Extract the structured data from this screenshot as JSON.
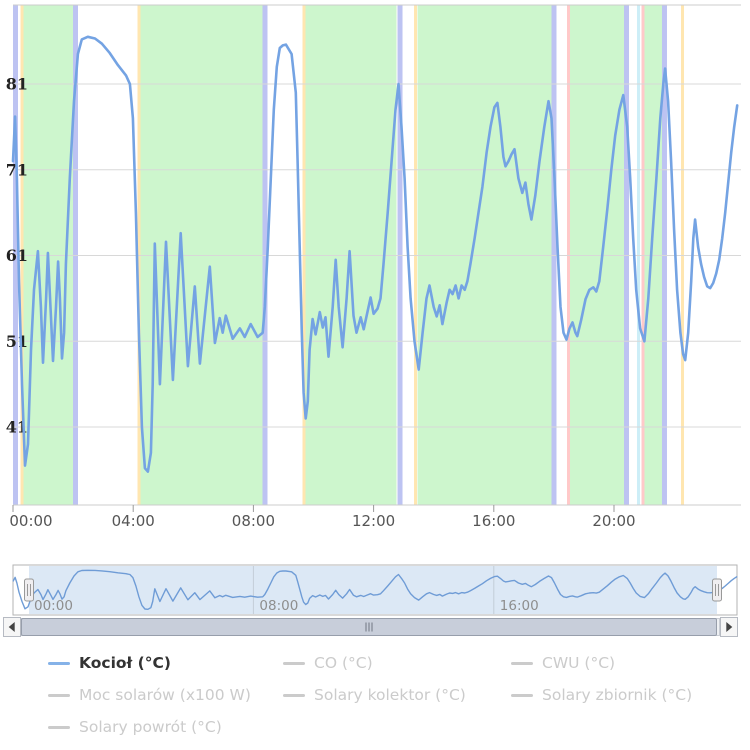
{
  "palette": {
    "series_blue": "#74a3e3",
    "band_green": "#cdf6cd",
    "plotline_lavender": "#bdc3f2",
    "plotline_yellow": "#ffe6b0",
    "plotline_pink": "#ffc9c9",
    "plotline_cyan": "#cdeef7",
    "gridline": "#d8d8d8",
    "axis_line": "#cccccc",
    "inactive_gray": "#cbcbcb"
  },
  "chart_data": {
    "type": "line",
    "title": "",
    "x_axis": {
      "unit": "time of day",
      "ticks": [
        {
          "h": 0,
          "label": "00:00"
        },
        {
          "h": 4,
          "label": "04:00"
        },
        {
          "h": 8,
          "label": "08:00"
        },
        {
          "h": 12,
          "label": "12:00"
        },
        {
          "h": 16,
          "label": "16:00"
        },
        {
          "h": 20,
          "label": "20:00"
        }
      ],
      "range_hours": [
        0,
        24.2
      ]
    },
    "y_axis": {
      "ticks": [
        81,
        71,
        61,
        51,
        41
      ],
      "range": [
        31.9,
        90.3
      ],
      "grid": true
    },
    "series": [
      {
        "name": "Kocioł (°C)",
        "color": "#74a3e3",
        "visible": true,
        "points": [
          [
            0.0,
            72
          ],
          [
            0.07,
            77.2
          ],
          [
            0.13,
            70
          ],
          [
            0.2,
            58
          ],
          [
            0.3,
            46
          ],
          [
            0.4,
            36.5
          ],
          [
            0.5,
            39
          ],
          [
            0.6,
            50
          ],
          [
            0.7,
            57
          ],
          [
            0.83,
            61.5
          ],
          [
            0.93,
            55
          ],
          [
            1.0,
            48.5
          ],
          [
            1.1,
            56
          ],
          [
            1.16,
            61.3
          ],
          [
            1.26,
            54
          ],
          [
            1.33,
            48.7
          ],
          [
            1.43,
            55
          ],
          [
            1.5,
            60.3
          ],
          [
            1.56,
            56
          ],
          [
            1.63,
            49
          ],
          [
            1.7,
            52
          ],
          [
            1.76,
            60
          ],
          [
            1.89,
            70
          ],
          [
            2.03,
            79
          ],
          [
            2.16,
            84.5
          ],
          [
            2.29,
            86.2
          ],
          [
            2.49,
            86.5
          ],
          [
            2.73,
            86.3
          ],
          [
            2.96,
            85.7
          ],
          [
            3.22,
            84.6
          ],
          [
            3.49,
            83.2
          ],
          [
            3.76,
            82.0
          ],
          [
            3.89,
            81.0
          ],
          [
            3.99,
            77
          ],
          [
            4.09,
            66
          ],
          [
            4.19,
            52
          ],
          [
            4.29,
            41
          ],
          [
            4.39,
            36.2
          ],
          [
            4.49,
            35.8
          ],
          [
            4.59,
            38
          ],
          [
            4.65,
            46
          ],
          [
            4.72,
            62.4
          ],
          [
            4.89,
            46
          ],
          [
            5.09,
            62.6
          ],
          [
            5.32,
            46.5
          ],
          [
            5.58,
            63.6
          ],
          [
            5.82,
            48.1
          ],
          [
            6.05,
            57.4
          ],
          [
            6.22,
            48.4
          ],
          [
            6.55,
            59.7
          ],
          [
            6.72,
            50.8
          ],
          [
            6.88,
            53.7
          ],
          [
            6.98,
            52
          ],
          [
            7.08,
            54
          ],
          [
            7.31,
            51.3
          ],
          [
            7.55,
            52.5
          ],
          [
            7.71,
            51.5
          ],
          [
            7.91,
            53
          ],
          [
            8.14,
            51.5
          ],
          [
            8.31,
            52
          ],
          [
            8.38,
            55
          ],
          [
            8.48,
            62
          ],
          [
            8.58,
            70
          ],
          [
            8.68,
            78
          ],
          [
            8.78,
            83
          ],
          [
            8.88,
            85.2
          ],
          [
            8.98,
            85.5
          ],
          [
            9.08,
            85.6
          ],
          [
            9.27,
            84.5
          ],
          [
            9.41,
            80
          ],
          [
            9.47,
            72
          ],
          [
            9.54,
            62
          ],
          [
            9.61,
            52
          ],
          [
            9.67,
            45
          ],
          [
            9.74,
            42
          ],
          [
            9.81,
            44
          ],
          [
            9.87,
            50
          ],
          [
            9.97,
            53.6
          ],
          [
            10.07,
            51.8
          ],
          [
            10.21,
            54.4
          ],
          [
            10.31,
            52.6
          ],
          [
            10.4,
            53.8
          ],
          [
            10.5,
            49.2
          ],
          [
            10.64,
            55
          ],
          [
            10.74,
            60.5
          ],
          [
            10.84,
            55
          ],
          [
            10.97,
            50.3
          ],
          [
            11.1,
            56
          ],
          [
            11.2,
            61.5
          ],
          [
            11.33,
            54
          ],
          [
            11.43,
            52
          ],
          [
            11.57,
            53.8
          ],
          [
            11.67,
            52.4
          ],
          [
            11.8,
            54.5
          ],
          [
            11.9,
            56.1
          ],
          [
            12.0,
            54.2
          ],
          [
            12.13,
            54.8
          ],
          [
            12.23,
            56
          ],
          [
            12.33,
            60
          ],
          [
            12.47,
            66
          ],
          [
            12.6,
            72
          ],
          [
            12.73,
            78
          ],
          [
            12.83,
            81
          ],
          [
            12.93,
            76
          ],
          [
            13.03,
            70
          ],
          [
            13.13,
            62
          ],
          [
            13.23,
            56
          ],
          [
            13.36,
            51
          ],
          [
            13.5,
            47.7
          ],
          [
            13.63,
            52
          ],
          [
            13.76,
            56
          ],
          [
            13.86,
            57.5
          ],
          [
            14.0,
            55
          ],
          [
            14.1,
            53.9
          ],
          [
            14.2,
            55.2
          ],
          [
            14.29,
            53
          ],
          [
            14.43,
            55.5
          ],
          [
            14.53,
            57
          ],
          [
            14.63,
            56.5
          ],
          [
            14.73,
            57.5
          ],
          [
            14.83,
            56
          ],
          [
            14.93,
            57.5
          ],
          [
            15.03,
            57
          ],
          [
            15.12,
            58
          ],
          [
            15.22,
            60
          ],
          [
            15.36,
            63
          ],
          [
            15.49,
            66
          ],
          [
            15.62,
            69
          ],
          [
            15.76,
            73
          ],
          [
            15.89,
            76
          ],
          [
            16.02,
            78.3
          ],
          [
            16.12,
            78.8
          ],
          [
            16.22,
            76
          ],
          [
            16.32,
            72.5
          ],
          [
            16.39,
            71.4
          ],
          [
            16.49,
            72
          ],
          [
            16.59,
            72.8
          ],
          [
            16.69,
            73.4
          ],
          [
            16.82,
            70
          ],
          [
            16.95,
            68.3
          ],
          [
            17.05,
            69.5
          ],
          [
            17.15,
            67
          ],
          [
            17.25,
            65.2
          ],
          [
            17.38,
            68
          ],
          [
            17.52,
            72
          ],
          [
            17.68,
            76
          ],
          [
            17.82,
            79
          ],
          [
            17.92,
            77
          ],
          [
            18.02,
            70
          ],
          [
            18.12,
            62
          ],
          [
            18.22,
            55
          ],
          [
            18.32,
            52
          ],
          [
            18.42,
            51.2
          ],
          [
            18.52,
            52.5
          ],
          [
            18.62,
            53.2
          ],
          [
            18.72,
            52
          ],
          [
            18.78,
            51.6
          ],
          [
            18.91,
            53.5
          ],
          [
            19.05,
            55.9
          ],
          [
            19.18,
            57
          ],
          [
            19.31,
            57.3
          ],
          [
            19.41,
            56.8
          ],
          [
            19.51,
            58
          ],
          [
            19.64,
            62
          ],
          [
            19.78,
            66.5
          ],
          [
            19.91,
            71
          ],
          [
            20.04,
            75
          ],
          [
            20.18,
            78
          ],
          [
            20.31,
            79.7
          ],
          [
            20.44,
            76
          ],
          [
            20.54,
            70
          ],
          [
            20.64,
            63
          ],
          [
            20.74,
            57
          ],
          [
            20.87,
            52.5
          ],
          [
            21.01,
            51
          ],
          [
            21.14,
            56
          ],
          [
            21.27,
            63
          ],
          [
            21.41,
            70
          ],
          [
            21.54,
            77
          ],
          [
            21.64,
            81
          ],
          [
            21.7,
            82.8
          ],
          [
            21.8,
            79
          ],
          [
            21.9,
            72
          ],
          [
            22.0,
            64
          ],
          [
            22.1,
            57
          ],
          [
            22.21,
            52
          ],
          [
            22.3,
            49.5
          ],
          [
            22.37,
            48.8
          ],
          [
            22.47,
            52
          ],
          [
            22.57,
            58
          ],
          [
            22.64,
            63
          ],
          [
            22.7,
            65.2
          ],
          [
            22.8,
            62
          ],
          [
            22.9,
            60
          ],
          [
            23.0,
            58.5
          ],
          [
            23.1,
            57.4
          ],
          [
            23.2,
            57.2
          ],
          [
            23.3,
            57.8
          ],
          [
            23.4,
            58.9
          ],
          [
            23.5,
            60.5
          ],
          [
            23.6,
            63
          ],
          [
            23.7,
            66
          ],
          [
            23.8,
            69.5
          ],
          [
            23.9,
            73
          ],
          [
            24.0,
            76
          ],
          [
            24.1,
            78.5
          ]
        ]
      }
    ],
    "plot_bands": [
      {
        "from": 0.333,
        "to": 2.013,
        "color": "#cdf6cd"
      },
      {
        "from": 4.243,
        "to": 8.319,
        "color": "#cdf6cd"
      },
      {
        "from": 9.734,
        "to": 12.762,
        "color": "#cdf6cd"
      },
      {
        "from": 13.462,
        "to": 17.921,
        "color": "#cdf6cd"
      },
      {
        "from": 18.536,
        "to": 20.333,
        "color": "#cdf6cd"
      },
      {
        "from": 21.015,
        "to": 21.597,
        "color": "#cdf6cd"
      }
    ],
    "plot_lines": [
      {
        "at": 0.083,
        "color": "#bdc3f2",
        "width": 5
      },
      {
        "at": 2.08,
        "color": "#bdc3f2",
        "width": 5
      },
      {
        "at": 8.386,
        "color": "#bdc3f2",
        "width": 5
      },
      {
        "at": 12.879,
        "color": "#bdc3f2",
        "width": 5
      },
      {
        "at": 18.003,
        "color": "#bdc3f2",
        "width": 5
      },
      {
        "at": 20.416,
        "color": "#bdc3f2",
        "width": 5
      },
      {
        "at": 21.68,
        "color": "#bdc3f2",
        "width": 5
      },
      {
        "at": 0.3,
        "color": "#ffe6b0",
        "width": 3
      },
      {
        "at": 4.193,
        "color": "#ffe6b0",
        "width": 3
      },
      {
        "at": 9.684,
        "color": "#ffe6b0",
        "width": 3
      },
      {
        "at": 13.395,
        "color": "#ffe6b0",
        "width": 3
      },
      {
        "at": 22.28,
        "color": "#ffe6b0",
        "width": 3
      },
      {
        "at": 18.486,
        "color": "#ffc9c9",
        "width": 3
      },
      {
        "at": 20.965,
        "color": "#ffc9c9",
        "width": 3
      },
      {
        "at": 20.815,
        "color": "#cdeef7",
        "width": 3
      }
    ],
    "legend_position": "bottom",
    "navigator": {
      "labels": [
        {
          "h": 0,
          "label": "00:00"
        },
        {
          "h": 8,
          "label": "08:00"
        },
        {
          "h": 16,
          "label": "16:00"
        }
      ]
    }
  },
  "legend": {
    "items": [
      {
        "label": "Kocioł (°C)",
        "active": true,
        "color": "#74a3e3"
      },
      {
        "label": "CO (°C)",
        "active": false,
        "color": "#cccccc"
      },
      {
        "label": "CWU (°C)",
        "active": false,
        "color": "#cccccc"
      },
      {
        "label": "Moc solarów (x100 W)",
        "active": false,
        "color": "#cccccc"
      },
      {
        "label": "Solary kolektor (°C)",
        "active": false,
        "color": "#cccccc"
      },
      {
        "label": "Solary zbiornik (°C)",
        "active": false,
        "color": "#cccccc"
      },
      {
        "label": "Solary powrót (°C)",
        "active": false,
        "color": "#cccccc"
      }
    ]
  }
}
